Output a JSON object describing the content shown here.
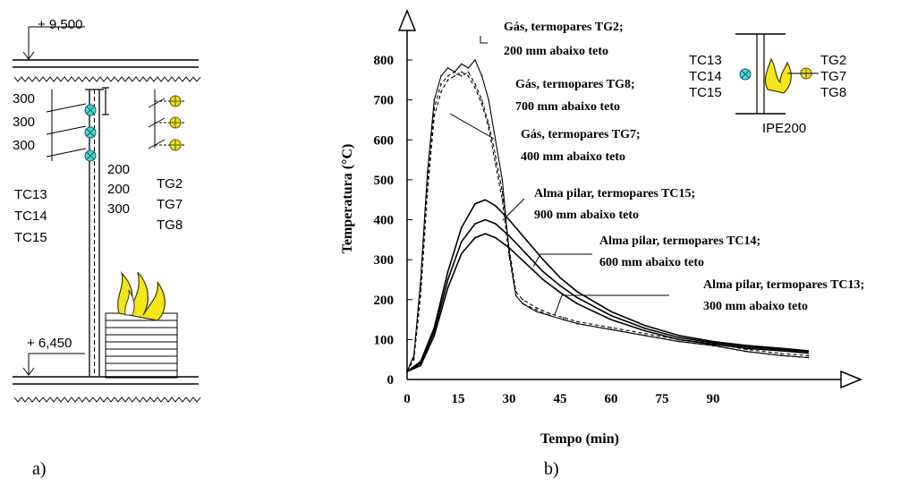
{
  "panel_a": {
    "caption": "a)",
    "level_top": "+ 9,500",
    "level_bottom": "+ 6,450",
    "left_spacings": [
      "300",
      "300",
      "300"
    ],
    "tc_labels": [
      "TC13",
      "TC14",
      "TC15"
    ],
    "mid_spacings": [
      "200",
      "200",
      "300"
    ],
    "tg_labels": [
      "TG2",
      "TG7",
      "TG8"
    ]
  },
  "panel_b": {
    "caption": "b)",
    "inset": {
      "tc_labels": [
        "TC13",
        "TC14",
        "TC15"
      ],
      "tg_labels": [
        "TG2",
        "TG7",
        "TG8"
      ],
      "section_label": "IPE200"
    },
    "annotations": [
      {
        "line1": "Gás, termopares TG2;",
        "line2": "200 mm abaixo teto"
      },
      {
        "line1": "Gás, termopares TG8;",
        "line2": "700 mm abaixo teto"
      },
      {
        "line1": "Gás, termopares TG7;",
        "line2": "400 mm abaixo teto"
      },
      {
        "line1": "Alma pilar, termopares TC15;",
        "line2": "900 mm abaixo teto"
      },
      {
        "line1": "Alma pilar, termopares TC14;",
        "line2": "600 mm abaixo teto"
      },
      {
        "line1": "Alma pilar, termopares TC13;",
        "line2": "300 mm abaixo teto"
      }
    ]
  },
  "chart_data": {
    "type": "line",
    "xlabel": "Tempo (min)",
    "ylabel": "Temperatura (°C)",
    "xlim": [
      0,
      120
    ],
    "ylim": [
      0,
      850
    ],
    "xticks": [
      0,
      15,
      30,
      45,
      60,
      75,
      90
    ],
    "yticks": [
      0,
      100,
      200,
      300,
      400,
      500,
      600,
      700,
      800
    ],
    "series": [
      {
        "name": "Gás, termopares TG2",
        "style": "solid-noisy",
        "x": [
          0,
          2,
          4,
          6,
          8,
          10,
          12,
          14,
          16,
          18,
          20,
          22,
          24,
          26,
          28,
          30,
          32,
          34,
          38,
          42,
          46,
          50,
          60,
          70,
          80,
          90,
          100,
          110,
          118
        ],
        "y": [
          20,
          60,
          250,
          520,
          700,
          760,
          780,
          770,
          790,
          780,
          800,
          760,
          700,
          600,
          500,
          320,
          210,
          190,
          170,
          160,
          150,
          140,
          125,
          110,
          95,
          85,
          70,
          60,
          55
        ]
      },
      {
        "name": "Gás, termopares TG8",
        "style": "dashed",
        "x": [
          0,
          2,
          4,
          6,
          8,
          10,
          12,
          14,
          16,
          18,
          20,
          22,
          24,
          26,
          28,
          30,
          32,
          34,
          38,
          42,
          46,
          50,
          60,
          70,
          80,
          90,
          100,
          110,
          118
        ],
        "y": [
          20,
          55,
          230,
          490,
          680,
          740,
          760,
          770,
          760,
          770,
          740,
          700,
          640,
          560,
          470,
          330,
          220,
          200,
          180,
          165,
          155,
          145,
          130,
          115,
          100,
          90,
          75,
          65,
          60
        ]
      },
      {
        "name": "Gás, termopares TG7",
        "style": "dashed",
        "x": [
          0,
          2,
          4,
          6,
          8,
          10,
          12,
          14,
          16,
          18,
          20,
          22,
          24,
          26,
          28,
          30,
          32,
          34,
          38,
          42,
          46,
          50,
          60,
          70,
          80,
          90,
          100,
          110,
          118
        ],
        "y": [
          20,
          50,
          210,
          470,
          660,
          720,
          750,
          760,
          770,
          760,
          730,
          690,
          630,
          540,
          450,
          310,
          210,
          190,
          175,
          160,
          150,
          140,
          125,
          110,
          95,
          85,
          70,
          60,
          55
        ]
      },
      {
        "name": "Alma pilar, termopares TC15",
        "style": "solid",
        "x": [
          0,
          4,
          8,
          12,
          16,
          20,
          23,
          26,
          30,
          35,
          40,
          45,
          50,
          60,
          70,
          80,
          90,
          100,
          110,
          118
        ],
        "y": [
          20,
          45,
          130,
          270,
          380,
          440,
          450,
          435,
          400,
          350,
          300,
          255,
          220,
          170,
          135,
          110,
          95,
          85,
          78,
          72
        ]
      },
      {
        "name": "Alma pilar, termopares TC14",
        "style": "solid",
        "x": [
          0,
          4,
          8,
          12,
          16,
          20,
          23,
          26,
          30,
          35,
          40,
          45,
          50,
          60,
          70,
          80,
          90,
          100,
          110,
          118
        ],
        "y": [
          20,
          40,
          120,
          250,
          345,
          390,
          400,
          390,
          360,
          315,
          270,
          235,
          205,
          160,
          128,
          105,
          92,
          82,
          75,
          70
        ]
      },
      {
        "name": "Alma pilar, termopares TC13",
        "style": "solid",
        "x": [
          0,
          4,
          8,
          12,
          16,
          20,
          23,
          26,
          30,
          35,
          40,
          45,
          50,
          60,
          70,
          80,
          90,
          100,
          110,
          118
        ],
        "y": [
          20,
          35,
          110,
          230,
          315,
          355,
          365,
          355,
          330,
          290,
          250,
          218,
          190,
          150,
          122,
          100,
          88,
          78,
          72,
          66
        ]
      }
    ]
  }
}
